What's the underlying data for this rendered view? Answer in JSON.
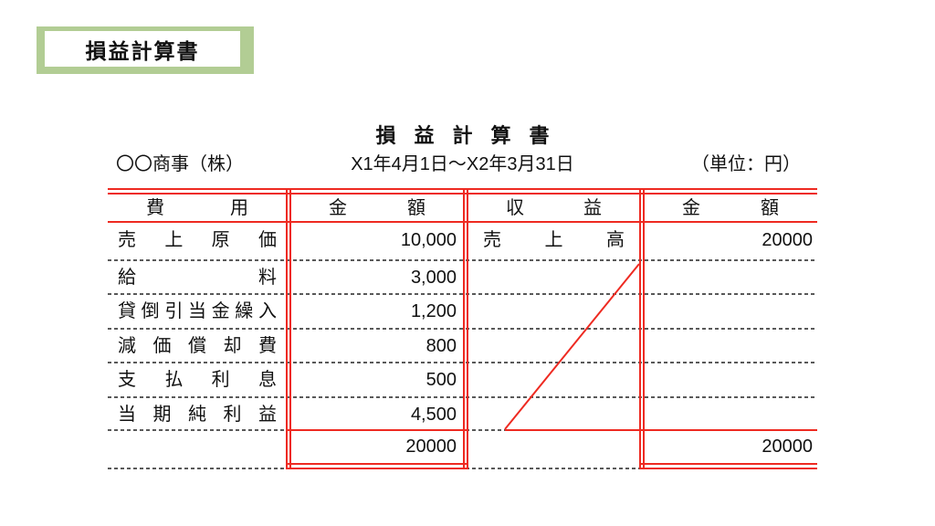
{
  "badge": {
    "label": "損益計算書"
  },
  "doc": {
    "title": "損益計算書",
    "company": "〇〇商事（株）",
    "period": "X1年4月1日～X2年3月31日",
    "unit": "（単位：円）"
  },
  "table": {
    "headers": {
      "expense": "費用",
      "amount_left": "金額",
      "revenue": "収益",
      "amount_right": "金額"
    },
    "expense_rows": [
      {
        "label": "売上原価",
        "amount": "10,000"
      },
      {
        "label": "給料",
        "amount": "3,000"
      },
      {
        "label": "貸倒引当金繰入",
        "amount": "1,200"
      },
      {
        "label": "減価償却費",
        "amount": "800"
      },
      {
        "label": "支払利息",
        "amount": "500"
      },
      {
        "label": "当期純利益",
        "amount": "4,500"
      }
    ],
    "expense_total": "20000",
    "revenue_rows": [
      {
        "label": "売上高",
        "amount": "20000"
      }
    ],
    "revenue_total": "20000"
  },
  "colors": {
    "line_red": "#ee2a21",
    "badge_green": "#b2cd94",
    "dotted_black": "#222222"
  }
}
